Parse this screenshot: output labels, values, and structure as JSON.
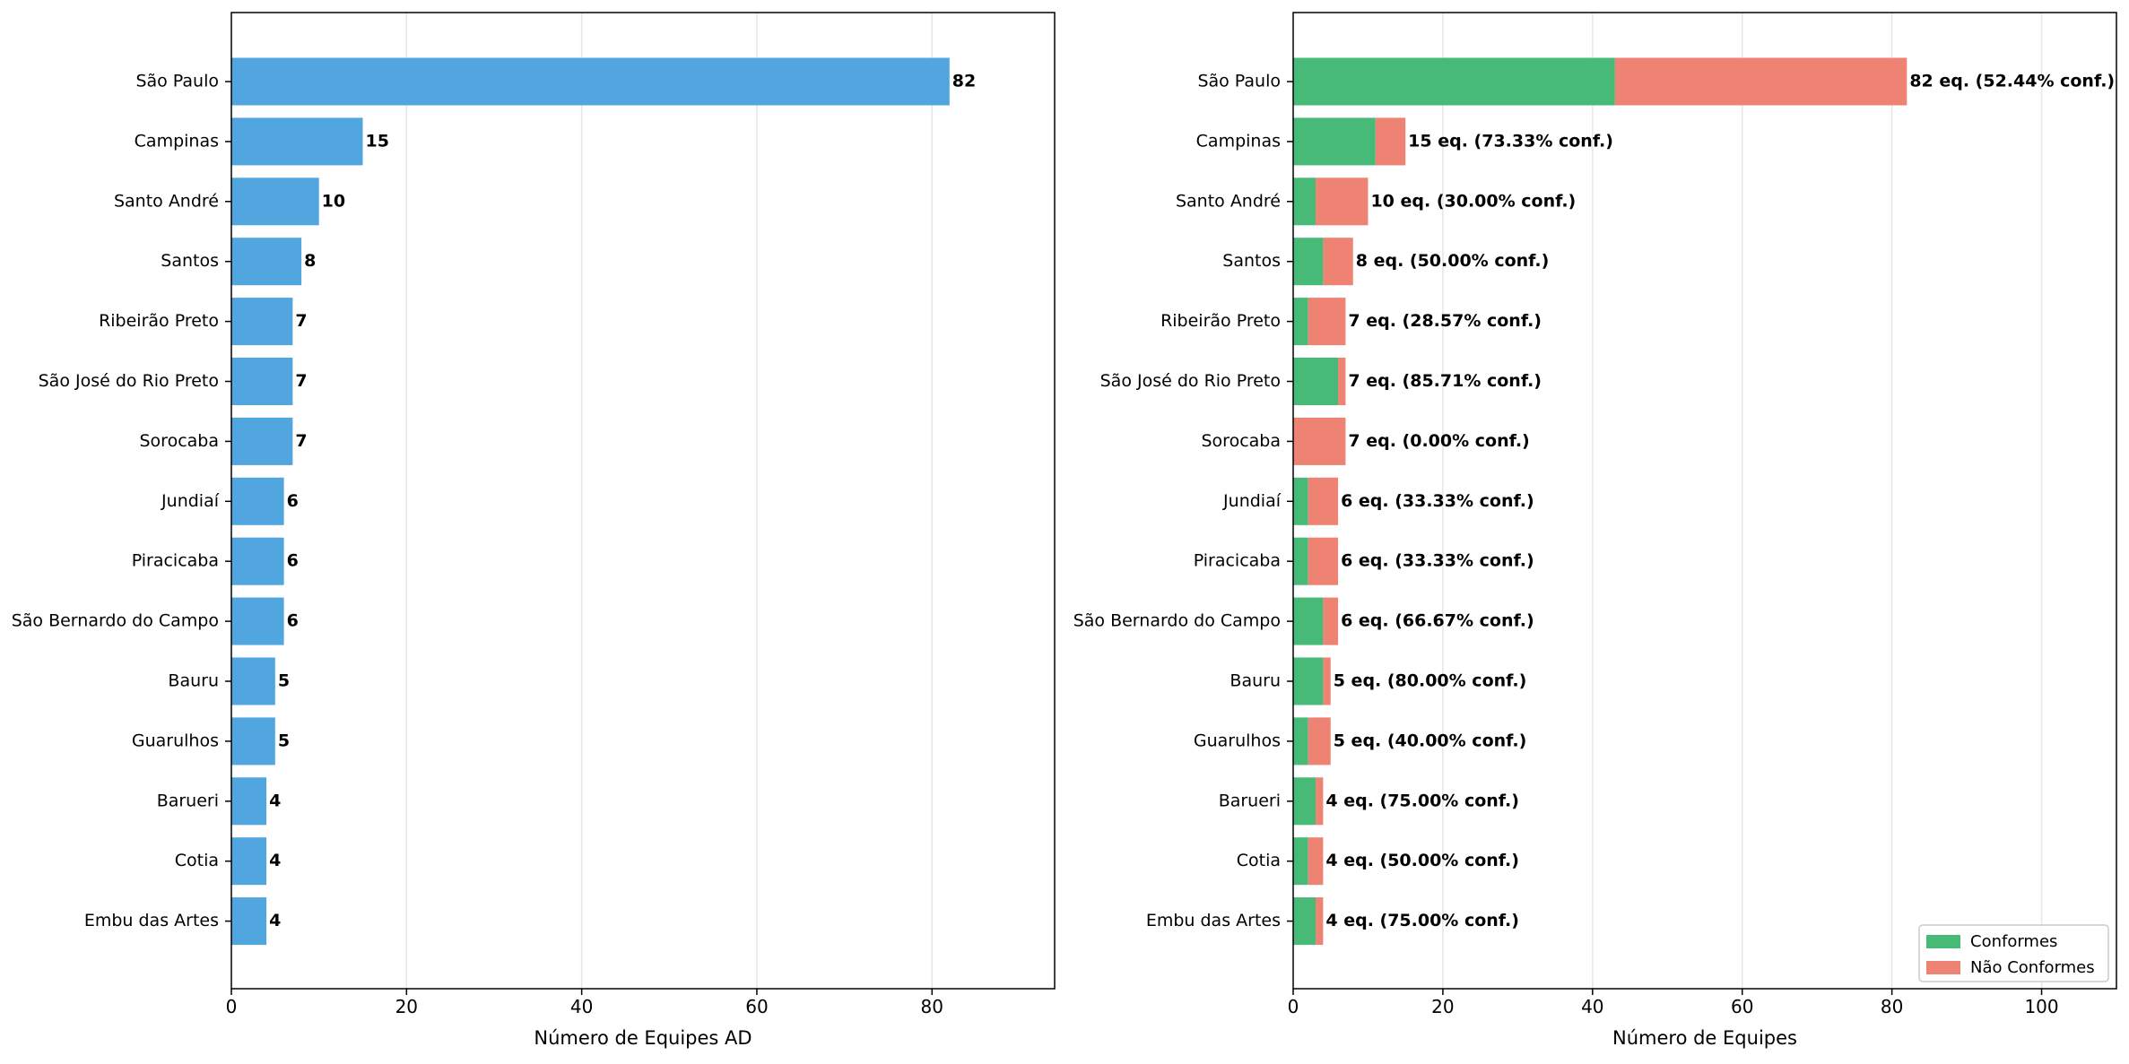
{
  "chart_data": [
    {
      "type": "bar",
      "orientation": "horizontal",
      "categories": [
        "São Paulo",
        "Campinas",
        "Santo André",
        "Santos",
        "Ribeirão Preto",
        "São José do Rio Preto",
        "Sorocaba",
        "Jundiaí",
        "Piracicaba",
        "São Bernardo do Campo",
        "Bauru",
        "Guarulhos",
        "Barueri",
        "Cotia",
        "Embu das Artes"
      ],
      "values": [
        82,
        15,
        10,
        8,
        7,
        7,
        7,
        6,
        6,
        6,
        5,
        5,
        4,
        4,
        4
      ],
      "data_labels": [
        "82",
        "15",
        "10",
        "8",
        "7",
        "7",
        "7",
        "6",
        "6",
        "6",
        "5",
        "5",
        "4",
        "4",
        "4"
      ],
      "xlabel": "Número de Equipes AD",
      "ylabel": "",
      "xlim": [
        0,
        94
      ],
      "xticks": [
        0,
        20,
        40,
        60,
        80
      ],
      "grid": "vertical",
      "color": "#52a6e0"
    },
    {
      "type": "bar",
      "orientation": "horizontal",
      "stacked": true,
      "categories": [
        "São Paulo",
        "Campinas",
        "Santo André",
        "Santos",
        "Ribeirão Preto",
        "São José do Rio Preto",
        "Sorocaba",
        "Jundiaí",
        "Piracicaba",
        "São Bernardo do Campo",
        "Bauru",
        "Guarulhos",
        "Barueri",
        "Cotia",
        "Embu das Artes"
      ],
      "series": [
        {
          "name": "Conformes",
          "color": "#47ba77",
          "values": [
            43,
            11,
            3,
            4,
            2,
            6,
            0,
            2,
            2,
            4,
            4,
            2,
            3,
            2,
            3
          ]
        },
        {
          "name": "Não Conformes",
          "color": "#ee8273",
          "values": [
            39,
            4,
            7,
            4,
            5,
            1,
            7,
            4,
            4,
            2,
            1,
            3,
            1,
            2,
            1
          ]
        }
      ],
      "data_labels": [
        "82 eq. (52.44% conf.)",
        "15 eq. (73.33% conf.)",
        "10 eq. (30.00% conf.)",
        "8 eq. (50.00% conf.)",
        "7 eq. (28.57% conf.)",
        "7 eq. (85.71% conf.)",
        "7 eq. (0.00% conf.)",
        "6 eq. (33.33% conf.)",
        "6 eq. (33.33% conf.)",
        "6 eq. (66.67% conf.)",
        "5 eq. (80.00% conf.)",
        "5 eq. (40.00% conf.)",
        "4 eq. (75.00% conf.)",
        "4 eq. (50.00% conf.)",
        "4 eq. (75.00% conf.)"
      ],
      "xlabel": "Número de Equipes",
      "ylabel": "",
      "xlim": [
        0,
        110
      ],
      "xticks": [
        0,
        20,
        40,
        60,
        80,
        100
      ],
      "grid": "vertical",
      "legend": "bottom-right"
    }
  ]
}
